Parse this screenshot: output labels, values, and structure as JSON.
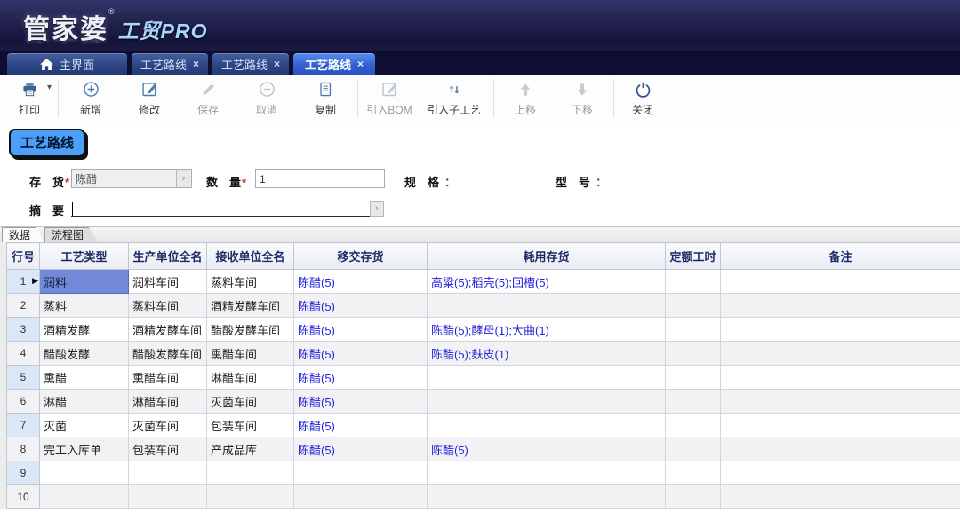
{
  "icons": {
    "caret": "▾",
    "tab_close": "×",
    "lookup": "›",
    "row_pointer": "▶"
  },
  "header": {
    "logo_main": "管家婆",
    "logo_reg": "®",
    "logo_sub": "工贸PRO"
  },
  "tabs": {
    "items": [
      {
        "label": "主界面",
        "icon": "home",
        "active": false,
        "closable": false
      },
      {
        "label": "工艺路线",
        "active": false,
        "closable": true
      },
      {
        "label": "工艺路线",
        "active": false,
        "closable": true
      },
      {
        "label": "工艺路线",
        "active": true,
        "closable": true
      }
    ]
  },
  "toolbar": {
    "buttons": [
      {
        "label": "打印",
        "enabled": true,
        "dropdown": true
      },
      {
        "label": "新增",
        "enabled": true
      },
      {
        "label": "修改",
        "enabled": true
      },
      {
        "label": "保存",
        "enabled": false
      },
      {
        "label": "取消",
        "enabled": false
      },
      {
        "label": "复制",
        "enabled": true
      },
      {
        "label": "引入BOM",
        "enabled": false
      },
      {
        "label": "引入子工艺",
        "enabled": true
      },
      {
        "label": "上移",
        "enabled": false
      },
      {
        "label": "下移",
        "enabled": false
      },
      {
        "label": "关闭",
        "enabled": true
      }
    ]
  },
  "page": {
    "title": "工艺路线"
  },
  "form": {
    "required_mark": "*",
    "inventory": {
      "label": "存　货",
      "value": "陈醋",
      "required": true
    },
    "quantity": {
      "label": "数　量",
      "value": "1",
      "required": true
    },
    "spec": {
      "label": "规　格",
      "colon": "：",
      "value": ""
    },
    "model": {
      "label": "型　号",
      "colon": "：",
      "value": ""
    },
    "summary": {
      "label": "摘　要",
      "value": ""
    }
  },
  "subtabs": {
    "items": [
      {
        "label": "数据",
        "active": true
      },
      {
        "label": "流程图",
        "active": false
      }
    ]
  },
  "table": {
    "columns": [
      "行号",
      "工艺类型",
      "生产单位全名",
      "接收单位全名",
      "移交存货",
      "耗用存货",
      "定额工时",
      "备注"
    ],
    "rows": [
      {
        "no": "1",
        "selected": true,
        "type": "润料",
        "prod": "润料车间",
        "recv": "蒸料车间",
        "transfer": "陈醋(5)",
        "consume": "高粱(5);稻壳(5);回槽(5)",
        "hours": "",
        "note": ""
      },
      {
        "no": "2",
        "type": "蒸料",
        "prod": "蒸料车间",
        "recv": "酒精发酵车间",
        "transfer": "陈醋(5)",
        "consume": "",
        "hours": "",
        "note": ""
      },
      {
        "no": "3",
        "type": "酒精发酵",
        "prod": "酒精发酵车间",
        "recv": "醋酸发酵车间",
        "transfer": "陈醋(5)",
        "consume": "陈醋(5);酵母(1);大曲(1)",
        "hours": "",
        "note": ""
      },
      {
        "no": "4",
        "type": "醋酸发酵",
        "prod": "醋酸发酵车间",
        "recv": "熏醋车间",
        "transfer": "陈醋(5)",
        "consume": "陈醋(5);麸皮(1)",
        "hours": "",
        "note": ""
      },
      {
        "no": "5",
        "type": "熏醋",
        "prod": "熏醋车间",
        "recv": "淋醋车间",
        "transfer": "陈醋(5)",
        "consume": "",
        "hours": "",
        "note": ""
      },
      {
        "no": "6",
        "type": "淋醋",
        "prod": "淋醋车间",
        "recv": "灭菌车间",
        "transfer": "陈醋(5)",
        "consume": "",
        "hours": "",
        "note": ""
      },
      {
        "no": "7",
        "type": "灭菌",
        "prod": "灭菌车间",
        "recv": "包装车间",
        "transfer": "陈醋(5)",
        "consume": "",
        "hours": "",
        "note": ""
      },
      {
        "no": "8",
        "type": "完工入库单",
        "prod": "包装车间",
        "recv": "产成品库",
        "transfer": "陈醋(5)",
        "consume": "陈醋(5)",
        "hours": "",
        "note": ""
      },
      {
        "no": "9",
        "type": "",
        "prod": "",
        "recv": "",
        "transfer": "",
        "consume": "",
        "hours": "",
        "note": ""
      },
      {
        "no": "10",
        "type": "",
        "prod": "",
        "recv": "",
        "transfer": "",
        "consume": "",
        "hours": "",
        "note": ""
      }
    ]
  },
  "colors": {
    "link_blue": "#2424d8",
    "selected_cell_bg": "#7289d8",
    "title_button_bg": "#4da0f7",
    "accent_navy": "#1c2a66"
  }
}
